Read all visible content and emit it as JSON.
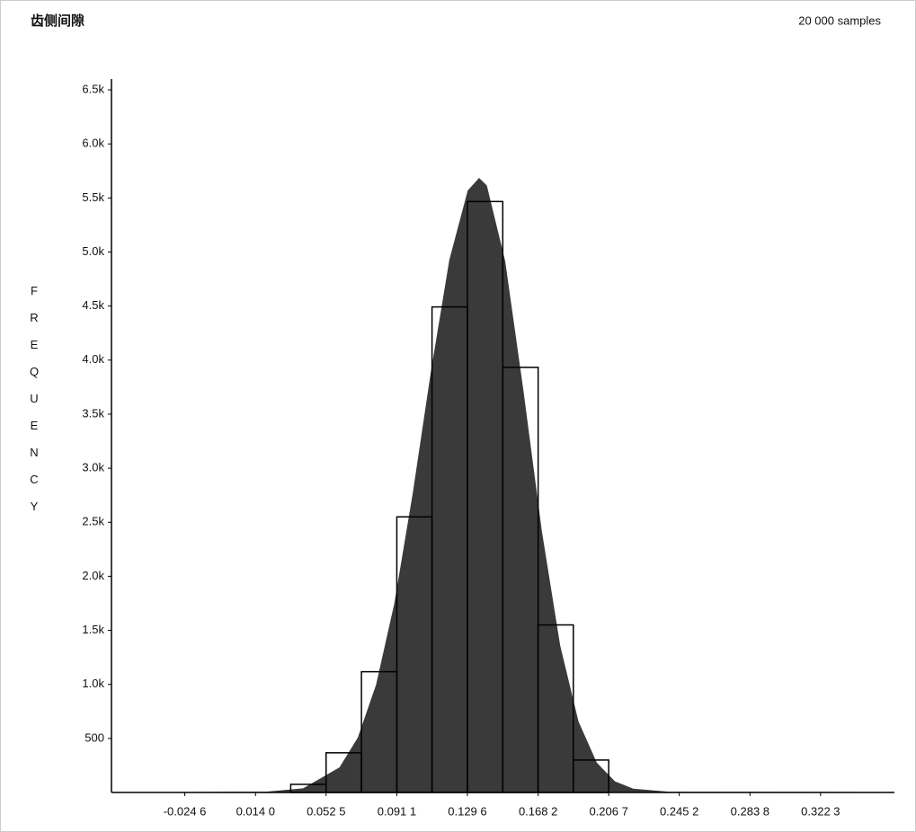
{
  "chart_data": {
    "type": "histogram",
    "title": "齿侧间隙",
    "subtitle": "20 000 samples",
    "y_label": "FREQUENCY",
    "bins": [
      0.0332,
      0.0525,
      0.0718,
      0.0911,
      0.1103,
      0.1296,
      0.1489,
      0.1682,
      0.1874,
      0.2067
    ],
    "values": [
      75,
      367,
      1117,
      2550,
      4492,
      5467,
      3933,
      1550,
      300
    ],
    "bar_color": "#000000",
    "curve": {
      "color": "#3a3a3a",
      "x": [
        -0.0246,
        0.02,
        0.04,
        0.06,
        0.07,
        0.08,
        0.09,
        0.1,
        0.11,
        0.12,
        0.13,
        0.136,
        0.14,
        0.15,
        0.16,
        0.17,
        0.18,
        0.19,
        0.2,
        0.21,
        0.22,
        0.24,
        0.36
      ],
      "values": [
        0,
        3,
        34,
        229,
        505,
        995,
        1750,
        2765,
        3900,
        4927,
        5567,
        5680,
        5613,
        4914,
        3710,
        2416,
        1358,
        655,
        274,
        99,
        31,
        2,
        0
      ]
    },
    "xlim": [
      -0.0646,
      0.3626
    ],
    "ylim": [
      0,
      6600
    ],
    "xticks": [
      {
        "value": -0.0246,
        "label": "-0.024 6"
      },
      {
        "value": 0.014,
        "label": "0.014 0"
      },
      {
        "value": 0.0525,
        "label": "0.052 5"
      },
      {
        "value": 0.0911,
        "label": "0.091 1"
      },
      {
        "value": 0.1296,
        "label": "0.129 6"
      },
      {
        "value": 0.1682,
        "label": "0.168 2"
      },
      {
        "value": 0.2067,
        "label": "0.206 7"
      },
      {
        "value": 0.2452,
        "label": "0.245 2"
      },
      {
        "value": 0.2838,
        "label": "0.283 8"
      },
      {
        "value": 0.3223,
        "label": "0.322 3"
      }
    ],
    "yticks": [
      500,
      {
        "value": 1000,
        "label": "1.0k"
      },
      {
        "value": 1500,
        "label": "1.5k"
      },
      {
        "value": 2000,
        "label": "2.0k"
      },
      {
        "value": 2500,
        "label": "2.5k"
      },
      {
        "value": 3000,
        "label": "3.0k"
      },
      {
        "value": 3500,
        "label": "3.5k"
      },
      {
        "value": 4000,
        "label": "4.0k"
      },
      {
        "value": 4500,
        "label": "4.5k"
      },
      {
        "value": 5000,
        "label": "5.0k"
      },
      {
        "value": 5500,
        "label": "5.5k"
      },
      {
        "value": 6000,
        "label": "6.0k"
      },
      {
        "value": 6500,
        "label": "6.5k"
      }
    ]
  }
}
